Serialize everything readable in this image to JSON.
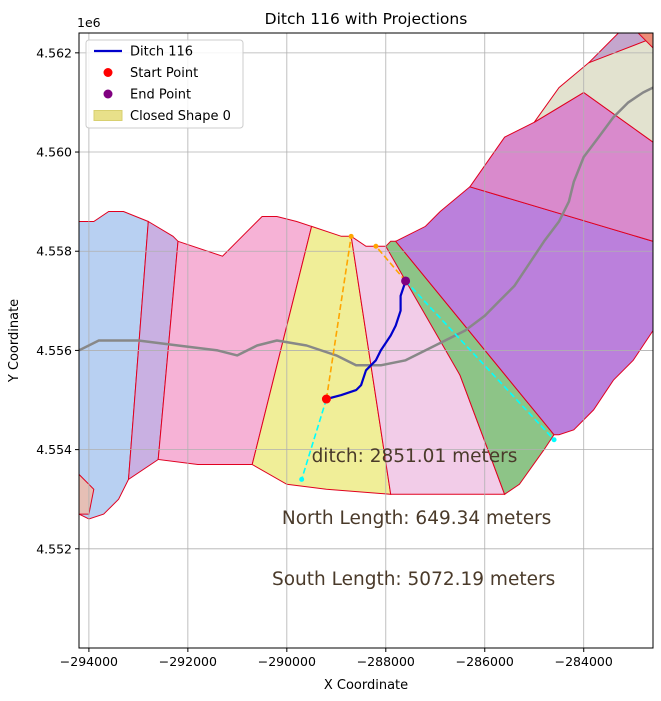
{
  "chart_data": {
    "type": "line",
    "title": "Ditch 116 with Projections",
    "xlabel": "X Coordinate",
    "ylabel": "Y Coordinate",
    "y_offset_label": "1e6",
    "xlim": [
      -294200,
      -282600
    ],
    "ylim": [
      4550000,
      4562400
    ],
    "grid": true,
    "legend_position": "upper left",
    "x_ticks": [
      -294000,
      -292000,
      -290000,
      -288000,
      -286000,
      -284000
    ],
    "x_tick_labels": [
      "−294000",
      "−292000",
      "−290000",
      "−288000",
      "−286000",
      "−284000"
    ],
    "y_ticks": [
      4552000,
      4554000,
      4556000,
      4558000,
      4560000,
      4562000
    ],
    "y_tick_labels": [
      "4.552",
      "4.554",
      "4.556",
      "4.558",
      "4.560",
      "4.562"
    ],
    "legend": [
      {
        "label": "Ditch 116",
        "kind": "line",
        "color": "#0000cc"
      },
      {
        "label": "Start Point",
        "kind": "dot",
        "color": "#ff0000"
      },
      {
        "label": "End Point",
        "kind": "dot",
        "color": "#800080"
      },
      {
        "label": "Closed Shape 0",
        "kind": "patch",
        "color": "#e8e08a"
      }
    ],
    "polygons": [
      {
        "color": "#b8d0f2",
        "points": [
          [
            -294200,
            4558600
          ],
          [
            -293900,
            4558600
          ],
          [
            -293600,
            4558800
          ],
          [
            -293300,
            4558800
          ],
          [
            -292800,
            4558600
          ],
          [
            -293200,
            4553400
          ],
          [
            -293400,
            4553000
          ],
          [
            -293700,
            4552700
          ],
          [
            -294000,
            4552600
          ],
          [
            -294200,
            4552700
          ]
        ]
      },
      {
        "color": "#c9b0e2",
        "points": [
          [
            -292800,
            4558600
          ],
          [
            -292300,
            4558300
          ],
          [
            -292200,
            4558200
          ],
          [
            -292600,
            4553800
          ],
          [
            -293200,
            4553400
          ]
        ]
      },
      {
        "color": "#f6b2d6",
        "points": [
          [
            -292200,
            4558200
          ],
          [
            -291300,
            4557900
          ],
          [
            -291000,
            4558200
          ],
          [
            -290500,
            4558700
          ],
          [
            -290200,
            4558700
          ],
          [
            -289800,
            4558600
          ],
          [
            -289500,
            4558500
          ],
          [
            -290700,
            4553700
          ],
          [
            -291800,
            4553700
          ],
          [
            -292600,
            4553800
          ]
        ]
      },
      {
        "color": "#f0ee98",
        "points": [
          [
            -289500,
            4558500
          ],
          [
            -288900,
            4558300
          ],
          [
            -288700,
            4558300
          ],
          [
            -287900,
            4553100
          ],
          [
            -289200,
            4553200
          ],
          [
            -290000,
            4553300
          ],
          [
            -290700,
            4553700
          ]
        ]
      },
      {
        "color": "#f2cce8",
        "points": [
          [
            -288700,
            4558300
          ],
          [
            -288400,
            4558100
          ],
          [
            -288200,
            4558100
          ],
          [
            -288000,
            4558100
          ],
          [
            -287800,
            4558200
          ],
          [
            -286500,
            4555500
          ],
          [
            -285600,
            4553100
          ],
          [
            -287900,
            4553100
          ]
        ]
      },
      {
        "color": "#8dc487",
        "points": [
          [
            -288000,
            4558100
          ],
          [
            -287900,
            4558200
          ],
          [
            -287800,
            4558200
          ],
          [
            -284600,
            4554300
          ],
          [
            -284800,
            4554000
          ],
          [
            -285300,
            4553300
          ],
          [
            -285600,
            4553100
          ],
          [
            -286500,
            4555500
          ]
        ]
      },
      {
        "color": "#bb80dc",
        "points": [
          [
            -287800,
            4558200
          ],
          [
            -287200,
            4558500
          ],
          [
            -286900,
            4558800
          ],
          [
            -286300,
            4559300
          ],
          [
            -282600,
            4558200
          ],
          [
            -282600,
            4556400
          ],
          [
            -283000,
            4555800
          ],
          [
            -283400,
            4555400
          ],
          [
            -283800,
            4554800
          ],
          [
            -284200,
            4554400
          ],
          [
            -284500,
            4554300
          ],
          [
            -284600,
            4554300
          ]
        ]
      },
      {
        "color": "#d98acc",
        "points": [
          [
            -286300,
            4559300
          ],
          [
            -285600,
            4560300
          ],
          [
            -285000,
            4560600
          ],
          [
            -284500,
            4560900
          ],
          [
            -284000,
            4561200
          ],
          [
            -282600,
            4560200
          ],
          [
            -282600,
            4558200
          ]
        ]
      },
      {
        "color": "#e2e2cf",
        "points": [
          [
            -285000,
            4560600
          ],
          [
            -284500,
            4561300
          ],
          [
            -283900,
            4561800
          ],
          [
            -283400,
            4562100
          ],
          [
            -282600,
            4562300
          ],
          [
            -282600,
            4560200
          ],
          [
            -284000,
            4561200
          ]
        ]
      },
      {
        "color": "#c4a6cd",
        "points": [
          [
            -283900,
            4561800
          ],
          [
            -283300,
            4562400
          ],
          [
            -282600,
            4562400
          ],
          [
            -282600,
            4562300
          ]
        ]
      },
      {
        "color": "#ec8c78",
        "points": [
          [
            -282900,
            4562400
          ],
          [
            -282600,
            4562400
          ],
          [
            -282600,
            4562100
          ]
        ]
      },
      {
        "color": "#e6bfb5",
        "points": [
          [
            -294200,
            4553500
          ],
          [
            -293900,
            4553200
          ],
          [
            -294000,
            4552700
          ],
          [
            -294200,
            4552700
          ]
        ]
      }
    ],
    "series": [
      {
        "name": "Ditch 116",
        "color": "#0000cc",
        "points": [
          [
            -289200,
            4555020
          ],
          [
            -288900,
            4555100
          ],
          [
            -288600,
            4555200
          ],
          [
            -288500,
            4555300
          ],
          [
            -288400,
            4555600
          ],
          [
            -288200,
            4555800
          ],
          [
            -288100,
            4556000
          ],
          [
            -287900,
            4556300
          ],
          [
            -287800,
            4556500
          ],
          [
            -287700,
            4556800
          ],
          [
            -287700,
            4557100
          ],
          [
            -287600,
            4557400
          ]
        ]
      }
    ],
    "river": {
      "color": "#888888",
      "points": [
        [
          -294200,
          4556000
        ],
        [
          -293800,
          4556200
        ],
        [
          -293000,
          4556200
        ],
        [
          -292200,
          4556100
        ],
        [
          -291400,
          4556000
        ],
        [
          -291000,
          4555900
        ],
        [
          -290600,
          4556100
        ],
        [
          -290200,
          4556200
        ],
        [
          -289600,
          4556100
        ],
        [
          -289000,
          4555900
        ],
        [
          -288600,
          4555700
        ],
        [
          -288100,
          4555700
        ],
        [
          -287600,
          4555800
        ],
        [
          -287200,
          4556000
        ],
        [
          -286800,
          4556200
        ],
        [
          -286400,
          4556400
        ],
        [
          -286000,
          4556700
        ],
        [
          -285700,
          4557000
        ],
        [
          -285400,
          4557300
        ],
        [
          -285200,
          4557600
        ],
        [
          -285000,
          4557900
        ],
        [
          -284800,
          4558200
        ],
        [
          -284500,
          4558600
        ],
        [
          -284300,
          4559000
        ],
        [
          -284200,
          4559400
        ],
        [
          -284000,
          4559900
        ],
        [
          -283700,
          4560300
        ],
        [
          -283400,
          4560700
        ],
        [
          -283100,
          4561000
        ],
        [
          -282800,
          4561200
        ],
        [
          -282600,
          4561300
        ]
      ]
    },
    "projections": [
      {
        "color": "#ffa500",
        "from": [
          -289200,
          4555020
        ],
        "to": [
          -288700,
          4558300
        ]
      },
      {
        "color": "#00ffff",
        "from": [
          -289200,
          4555020
        ],
        "to": [
          -289700,
          4553400
        ]
      },
      {
        "color": "#ffa500",
        "from": [
          -287600,
          4557400
        ],
        "to": [
          -288200,
          4558100
        ]
      },
      {
        "color": "#00ffff",
        "from": [
          -287600,
          4557400
        ],
        "to": [
          -284600,
          4554200
        ]
      }
    ],
    "start_point": [
      -289200,
      4555020
    ],
    "end_point": [
      -287600,
      4557400
    ],
    "annotations": [
      {
        "text": "ditch: 2851.01 meters",
        "x": -289500,
        "y": 4553750
      },
      {
        "text": "North Length: 649.34 meters",
        "x": -290100,
        "y": 4552500
      },
      {
        "text": "South Length: 5072.19 meters",
        "x": -290300,
        "y": 4551270
      }
    ]
  }
}
